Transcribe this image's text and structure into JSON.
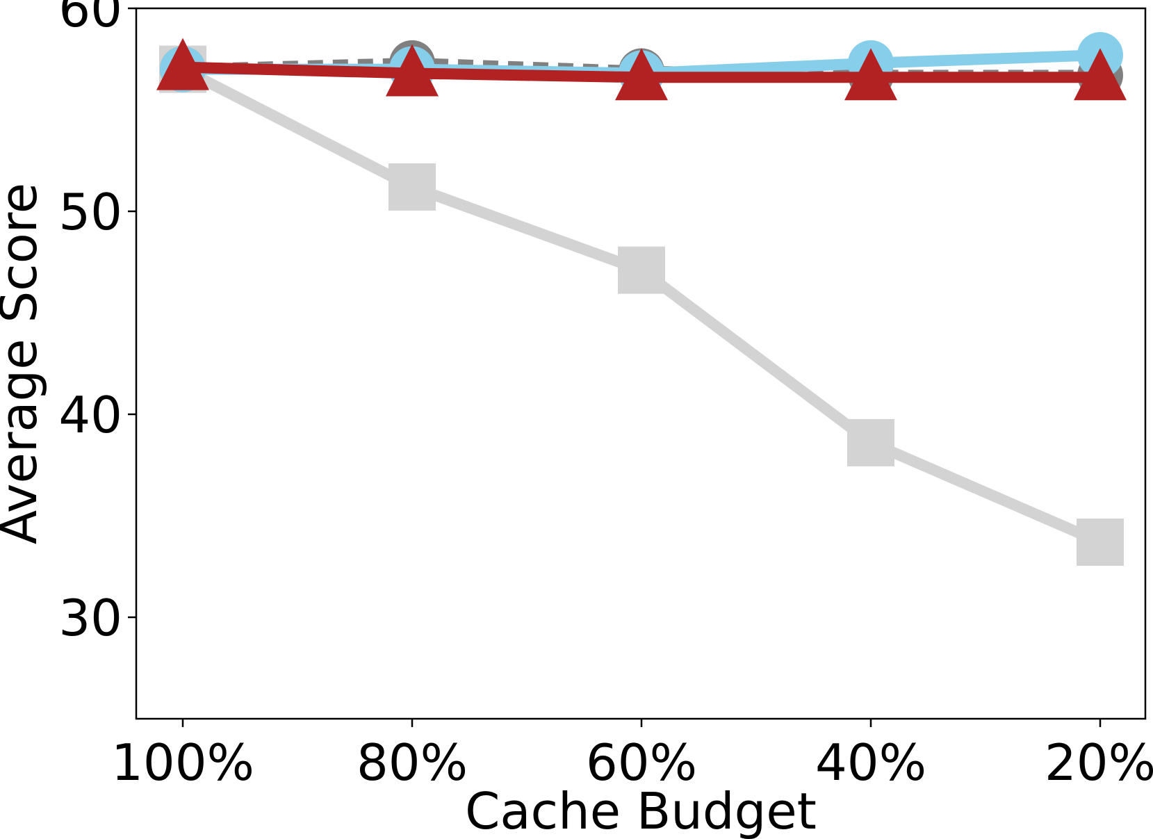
{
  "chart_data": {
    "type": "line",
    "xlabel": "Cache Budget",
    "ylabel": "Average Score",
    "categories": [
      "100%",
      "80%",
      "60%",
      "40%",
      "20%"
    ],
    "ylim": [
      25,
      60
    ],
    "yticks": [
      30,
      40,
      50,
      60
    ],
    "grid": false,
    "legend": "none",
    "series": [
      {
        "values": [
          57.0,
          51.2,
          47.1,
          38.6,
          33.7
        ],
        "color": "#d3d3d3",
        "marker": "square",
        "line": "solid"
      },
      {
        "values": [
          57.0,
          57.3,
          56.9,
          56.7,
          56.7
        ],
        "color": "#808080",
        "marker": "circle",
        "line": "dotted"
      },
      {
        "values": [
          57.0,
          57.0,
          56.8,
          57.3,
          57.7
        ],
        "color": "#87ceeb",
        "marker": "circle",
        "line": "solid"
      },
      {
        "values": [
          57.1,
          56.8,
          56.6,
          56.6,
          56.6
        ],
        "color": "#b22222",
        "marker": "triangle",
        "line": "solid"
      }
    ]
  }
}
